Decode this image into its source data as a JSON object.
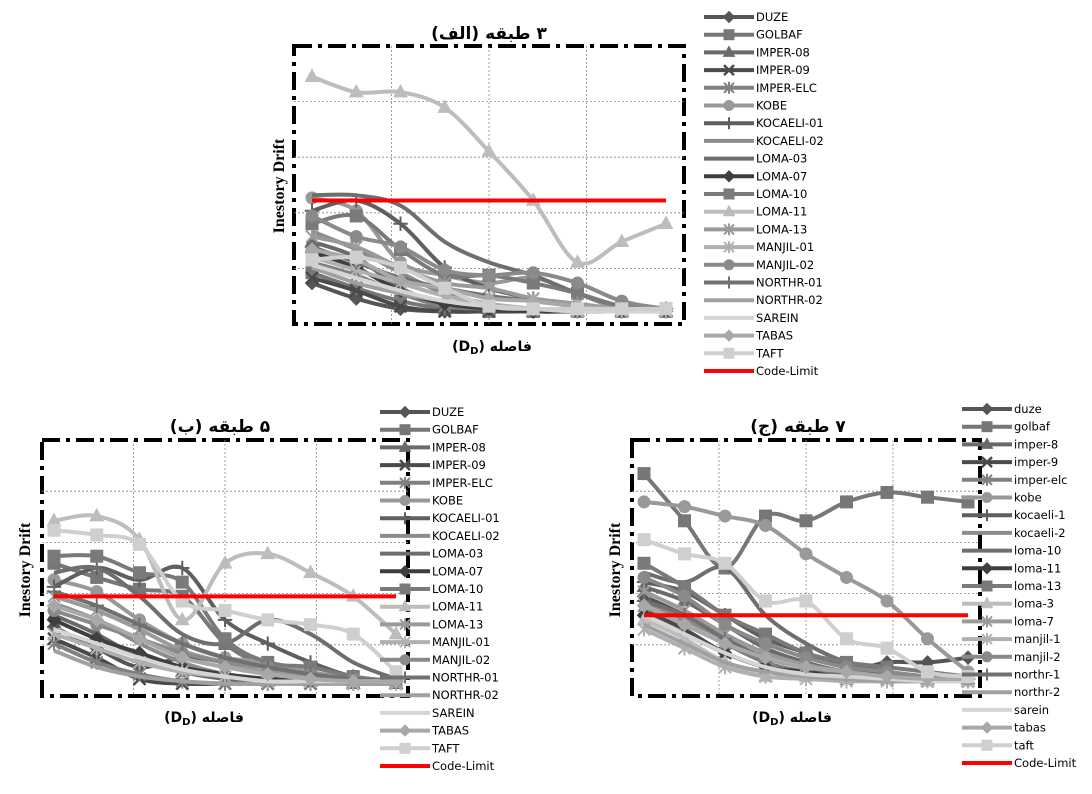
{
  "panels": [
    {
      "title": "(الف) ۳ طبقه",
      "ylabel": "Inestory Drift",
      "xlabel": "فاصله (DD)",
      "xlabel_main": "فاصله",
      "xlabel_sym": "D",
      "xlabel_sub": "D",
      "legend": [
        "DUZE",
        "GOLBAF",
        "IMPER-08",
        "IMPER-09",
        "IMPER-ELC",
        "KOBE",
        "KOCAELI-01",
        "KOCAELI-02",
        "LOMA-03",
        "LOMA-07",
        "LOMA-10",
        "LOMA-11",
        "LOMA-13",
        "MANJIL-01",
        "MANJIL-02",
        "NORTHR-01",
        "NORTHR-02",
        "SAREIN",
        "TABAS",
        "TAFT",
        "Code-Limit"
      ]
    },
    {
      "title": "(ب) ۵ طبقه",
      "ylabel": "Inestory Drift",
      "xlabel": "فاصله ( DD)",
      "xlabel_main": "فاصله (",
      "xlabel_sym": "D",
      "xlabel_sub": "D",
      "legend": [
        "DUZE",
        "GOLBAF",
        "IMPER-08",
        "IMPER-09",
        "IMPER-ELC",
        "KOBE",
        "KOCAELI-01",
        "KOCAELI-02",
        "LOMA-03",
        "LOMA-07",
        "LOMA-10",
        "LOMA-11",
        "LOMA-13",
        "MANJIL-01",
        "MANJIL-02",
        "NORTHR-01",
        "NORTHR-02",
        "SAREIN",
        "TABAS",
        "TAFT",
        "Code-Limit"
      ]
    },
    {
      "title": "(ج) ۷ طبقه",
      "ylabel": "Inestory Drift",
      "xlabel": "فاصله (DD)",
      "xlabel_main": "فاصله",
      "xlabel_sym": "D",
      "xlabel_sub": "D",
      "legend": [
        "duze",
        "golbaf",
        "imper-8",
        "imper-9",
        "imper-elc",
        "kobe",
        "kocaeli-1",
        "kocaeli-2",
        "loma-10",
        "loma-11",
        "loma-13",
        "loma-3",
        "loma-7",
        "manjil-1",
        "manjil-2",
        "northr-1",
        "northr-2",
        "sarein",
        "tabas",
        "taft",
        "Code-Limit"
      ]
    }
  ],
  "colors": {
    "code_limit": "#ff0000",
    "series": [
      "#555555",
      "#777777",
      "#6a6a6a",
      "#4a4a4a",
      "#808080",
      "#999999",
      "#5f5f5f",
      "#8c8c8c",
      "#6e6e6e",
      "#3f3f3f",
      "#7a7a7a",
      "#bdbdbd",
      "#9a9a9a",
      "#b0b0b0",
      "#8a8a8a",
      "#707070",
      "#a0a0a0",
      "#d5d5d5",
      "#a8a8a8",
      "#cfcfcf"
    ],
    "markers": [
      "diamond",
      "square",
      "triangle",
      "x",
      "star",
      "circle",
      "plus",
      "none",
      "none",
      "diamond",
      "square",
      "triangle",
      "star",
      "star",
      "circle",
      "plus",
      "none",
      "none",
      "diamond",
      "square"
    ]
  },
  "chart_data": [
    {
      "type": "line",
      "title": "(الف) ۳ طبقه",
      "xlabel": "فاصله (DD)",
      "ylabel": "Inestory Drift",
      "x": [
        0,
        1,
        2,
        3,
        4,
        5,
        6,
        7,
        8
      ],
      "ylim": [
        0,
        1
      ],
      "grid": true,
      "legend_position": "right",
      "code_limit": 0.44,
      "series": [
        {
          "name": "DUZE",
          "values": [
            0.12,
            0.06,
            0.02,
            0.01,
            0.01,
            0.01,
            0.01,
            0.01,
            0.01
          ]
        },
        {
          "name": "GOLBAF",
          "values": [
            0.16,
            0.1,
            0.05,
            0.02,
            0.01,
            0.01,
            0.01,
            0.01,
            0.01
          ]
        },
        {
          "name": "IMPER-08",
          "values": [
            0.28,
            0.22,
            0.1,
            0.04,
            0.02,
            0.01,
            0.01,
            0.01,
            0.01
          ]
        },
        {
          "name": "IMPER-09",
          "values": [
            0.14,
            0.09,
            0.03,
            0.01,
            0.01,
            0.01,
            0.01,
            0.01,
            0.01
          ]
        },
        {
          "name": "IMPER-ELC",
          "values": [
            0.2,
            0.15,
            0.08,
            0.03,
            0.02,
            0.01,
            0.01,
            0.01,
            0.01
          ]
        },
        {
          "name": "KOBE",
          "values": [
            0.45,
            0.4,
            0.2,
            0.15,
            0.12,
            0.14,
            0.08,
            0.02,
            0.02
          ]
        },
        {
          "name": "KOCAELI-01",
          "values": [
            0.4,
            0.44,
            0.35,
            0.18,
            0.1,
            0.06,
            0.03,
            0.02,
            0.02
          ]
        },
        {
          "name": "KOCAELI-02",
          "values": [
            0.32,
            0.25,
            0.16,
            0.08,
            0.04,
            0.02,
            0.01,
            0.01,
            0.01
          ]
        },
        {
          "name": "LOMA-03",
          "values": [
            0.46,
            0.46,
            0.42,
            0.28,
            0.2,
            0.15,
            0.08,
            0.03,
            0.02
          ]
        },
        {
          "name": "LOMA-07",
          "values": [
            0.24,
            0.18,
            0.09,
            0.04,
            0.02,
            0.01,
            0.01,
            0.01,
            0.01
          ]
        },
        {
          "name": "LOMA-10",
          "values": [
            0.35,
            0.38,
            0.25,
            0.15,
            0.15,
            0.12,
            0.08,
            0.03,
            0.02
          ]
        },
        {
          "name": "LOMA-11",
          "values": [
            0.92,
            0.86,
            0.86,
            0.8,
            0.63,
            0.44,
            0.2,
            0.28,
            0.35
          ]
        },
        {
          "name": "LOMA-13",
          "values": [
            0.3,
            0.26,
            0.18,
            0.12,
            0.1,
            0.06,
            0.04,
            0.02,
            0.02
          ]
        },
        {
          "name": "MANJIL-01",
          "values": [
            0.22,
            0.17,
            0.12,
            0.07,
            0.04,
            0.02,
            0.01,
            0.01,
            0.01
          ]
        },
        {
          "name": "MANJIL-02",
          "values": [
            0.38,
            0.3,
            0.26,
            0.17,
            0.15,
            0.16,
            0.12,
            0.05,
            0.02
          ]
        },
        {
          "name": "NORTHR-01",
          "values": [
            0.26,
            0.2,
            0.14,
            0.1,
            0.07,
            0.05,
            0.03,
            0.02,
            0.02
          ]
        },
        {
          "name": "NORTHR-02",
          "values": [
            0.18,
            0.12,
            0.08,
            0.05,
            0.03,
            0.02,
            0.01,
            0.01,
            0.01
          ]
        },
        {
          "name": "SAREIN",
          "values": [
            0.19,
            0.14,
            0.09,
            0.05,
            0.03,
            0.02,
            0.01,
            0.01,
            0.01
          ]
        },
        {
          "name": "TABAS",
          "values": [
            0.25,
            0.21,
            0.13,
            0.1,
            0.06,
            0.05,
            0.03,
            0.02,
            0.02
          ]
        },
        {
          "name": "TAFT",
          "values": [
            0.21,
            0.22,
            0.18,
            0.1,
            0.03,
            0.02,
            0.02,
            0.02,
            0.02
          ]
        }
      ]
    },
    {
      "type": "line",
      "title": "(ب) ۵ طبقه",
      "xlabel": "فاصله ( DD)",
      "ylabel": "Inestory Drift",
      "x": [
        0,
        1,
        2,
        3,
        4,
        5,
        6,
        7,
        8
      ],
      "ylim": [
        0,
        1
      ],
      "grid": true,
      "legend_position": "right",
      "code_limit": 0.38,
      "series": [
        {
          "name": "DUZE",
          "values": [
            0.25,
            0.16,
            0.08,
            0.12,
            0.1,
            0.05,
            0.02,
            0.02,
            0.02
          ]
        },
        {
          "name": "GOLBAF",
          "values": [
            0.52,
            0.46,
            0.41,
            0.38,
            0.18,
            0.08,
            0.04,
            0.02,
            0.02
          ]
        },
        {
          "name": "IMPER-08",
          "values": [
            0.3,
            0.22,
            0.12,
            0.06,
            0.03,
            0.02,
            0.02,
            0.01,
            0.01
          ]
        },
        {
          "name": "IMPER-09",
          "values": [
            0.2,
            0.12,
            0.03,
            0.01,
            0.01,
            0.01,
            0.01,
            0.01,
            0.01
          ]
        },
        {
          "name": "IMPER-ELC",
          "values": [
            0.18,
            0.1,
            0.05,
            0.02,
            0.01,
            0.01,
            0.01,
            0.01,
            0.01
          ]
        },
        {
          "name": "KOBE",
          "values": [
            0.45,
            0.4,
            0.28,
            0.18,
            0.12,
            0.1,
            0.06,
            0.03,
            0.02
          ]
        },
        {
          "name": "KOCAELI-01",
          "values": [
            0.42,
            0.5,
            0.45,
            0.5,
            0.28,
            0.18,
            0.1,
            0.04,
            0.02
          ]
        },
        {
          "name": "KOCAELI-02",
          "values": [
            0.35,
            0.28,
            0.18,
            0.1,
            0.05,
            0.03,
            0.02,
            0.02,
            0.02
          ]
        },
        {
          "name": "LOMA-03",
          "values": [
            0.48,
            0.5,
            0.38,
            0.22,
            0.18,
            0.28,
            0.22,
            0.1,
            0.03
          ]
        },
        {
          "name": "LOMA-07",
          "values": [
            0.28,
            0.2,
            0.14,
            0.08,
            0.05,
            0.03,
            0.02,
            0.02,
            0.02
          ]
        },
        {
          "name": "LOMA-10",
          "values": [
            0.55,
            0.55,
            0.48,
            0.44,
            0.2,
            0.1,
            0.08,
            0.04,
            0.02
          ]
        },
        {
          "name": "LOMA-11",
          "values": [
            0.7,
            0.72,
            0.62,
            0.28,
            0.52,
            0.56,
            0.48,
            0.38,
            0.22
          ]
        },
        {
          "name": "LOMA-13",
          "values": [
            0.38,
            0.32,
            0.24,
            0.15,
            0.1,
            0.06,
            0.04,
            0.02,
            0.02
          ]
        },
        {
          "name": "MANJIL-01",
          "values": [
            0.22,
            0.16,
            0.1,
            0.06,
            0.04,
            0.02,
            0.02,
            0.01,
            0.01
          ]
        },
        {
          "name": "MANJIL-02",
          "values": [
            0.32,
            0.26,
            0.2,
            0.14,
            0.1,
            0.08,
            0.05,
            0.03,
            0.02
          ]
        },
        {
          "name": "NORTHR-01",
          "values": [
            0.4,
            0.34,
            0.26,
            0.18,
            0.12,
            0.08,
            0.05,
            0.03,
            0.02
          ]
        },
        {
          "name": "NORTHR-02",
          "values": [
            0.15,
            0.08,
            0.04,
            0.02,
            0.01,
            0.01,
            0.01,
            0.01,
            0.01
          ]
        },
        {
          "name": "SAREIN",
          "values": [
            0.24,
            0.18,
            0.12,
            0.07,
            0.04,
            0.02,
            0.02,
            0.02,
            0.02
          ]
        },
        {
          "name": "TABAS",
          "values": [
            0.34,
            0.28,
            0.2,
            0.12,
            0.08,
            0.05,
            0.03,
            0.02,
            0.02
          ]
        },
        {
          "name": "TAFT",
          "values": [
            0.66,
            0.64,
            0.6,
            0.36,
            0.32,
            0.28,
            0.26,
            0.22,
            0.06
          ]
        }
      ]
    },
    {
      "type": "line",
      "title": "(ج) ۷ طبقه",
      "xlabel": "فاصله (DD)",
      "ylabel": "Inestory Drift",
      "x": [
        0,
        1,
        2,
        3,
        4,
        5,
        6,
        7,
        8
      ],
      "ylim": [
        0,
        1
      ],
      "grid": true,
      "legend_position": "right",
      "code_limit": 0.3,
      "series": [
        {
          "name": "duze",
          "values": [
            0.38,
            0.3,
            0.2,
            0.12,
            0.08,
            0.06,
            0.1,
            0.1,
            0.12
          ]
        },
        {
          "name": "golbaf",
          "values": [
            0.9,
            0.7,
            0.5,
            0.72,
            0.7,
            0.78,
            0.82,
            0.8,
            0.78
          ]
        },
        {
          "name": "imper-8",
          "values": [
            0.42,
            0.36,
            0.26,
            0.16,
            0.1,
            0.06,
            0.04,
            0.03,
            0.03
          ]
        },
        {
          "name": "imper-9",
          "values": [
            0.32,
            0.24,
            0.14,
            0.08,
            0.05,
            0.03,
            0.03,
            0.02,
            0.02
          ]
        },
        {
          "name": "imper-elc",
          "values": [
            0.34,
            0.26,
            0.18,
            0.1,
            0.06,
            0.04,
            0.03,
            0.02,
            0.02
          ]
        },
        {
          "name": "kobe",
          "values": [
            0.78,
            0.76,
            0.72,
            0.68,
            0.56,
            0.46,
            0.36,
            0.2,
            0.06
          ]
        },
        {
          "name": "kocaeli-1",
          "values": [
            0.44,
            0.4,
            0.3,
            0.2,
            0.14,
            0.08,
            0.05,
            0.04,
            0.03
          ]
        },
        {
          "name": "kocaeli-2",
          "values": [
            0.36,
            0.28,
            0.2,
            0.12,
            0.08,
            0.05,
            0.04,
            0.03,
            0.03
          ]
        },
        {
          "name": "loma-10",
          "values": [
            0.48,
            0.44,
            0.5,
            0.3,
            0.18,
            0.1,
            0.06,
            0.04,
            0.03
          ]
        },
        {
          "name": "loma-11",
          "values": [
            0.3,
            0.22,
            0.14,
            0.08,
            0.06,
            0.04,
            0.04,
            0.03,
            0.03
          ]
        },
        {
          "name": "loma-13",
          "values": [
            0.52,
            0.42,
            0.3,
            0.22,
            0.14,
            0.1,
            0.08,
            0.06,
            0.04
          ]
        },
        {
          "name": "loma-3",
          "values": [
            0.28,
            0.2,
            0.1,
            0.04,
            0.04,
            0.03,
            0.03,
            0.02,
            0.02
          ]
        },
        {
          "name": "loma-7",
          "values": [
            0.4,
            0.32,
            0.22,
            0.14,
            0.09,
            0.06,
            0.04,
            0.03,
            0.03
          ]
        },
        {
          "name": "manjil-1",
          "values": [
            0.24,
            0.16,
            0.08,
            0.04,
            0.03,
            0.02,
            0.02,
            0.02,
            0.02
          ]
        },
        {
          "name": "manjil-2",
          "values": [
            0.46,
            0.38,
            0.26,
            0.18,
            0.12,
            0.08,
            0.06,
            0.04,
            0.03
          ]
        },
        {
          "name": "northr-1",
          "values": [
            0.36,
            0.3,
            0.2,
            0.12,
            0.08,
            0.05,
            0.04,
            0.03,
            0.03
          ]
        },
        {
          "name": "northr-2",
          "values": [
            0.26,
            0.18,
            0.1,
            0.06,
            0.04,
            0.03,
            0.02,
            0.02,
            0.02
          ]
        },
        {
          "name": "sarein",
          "values": [
            0.3,
            0.22,
            0.14,
            0.08,
            0.05,
            0.04,
            0.03,
            0.02,
            0.02
          ]
        },
        {
          "name": "tabas",
          "values": [
            0.34,
            0.26,
            0.18,
            0.12,
            0.08,
            0.06,
            0.04,
            0.03,
            0.03
          ]
        },
        {
          "name": "taft",
          "values": [
            0.62,
            0.56,
            0.52,
            0.36,
            0.36,
            0.2,
            0.16,
            0.06,
            0.04
          ]
        }
      ]
    }
  ]
}
